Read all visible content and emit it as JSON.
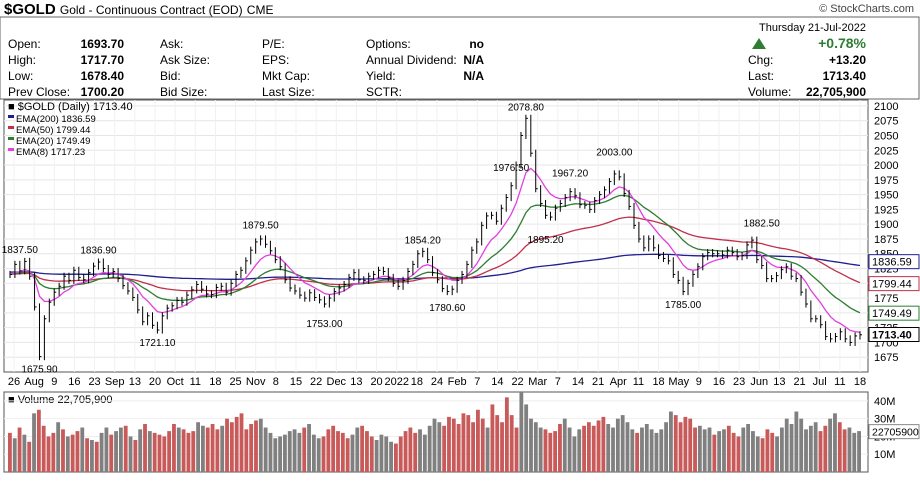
{
  "header": {
    "symbol": "$GOLD",
    "name": "Gold - Continuous Contract (EOD)",
    "exchange": "CME",
    "copyright": "© StockCharts.com",
    "date": "Thursday  21-Jul-2022",
    "pct_change": "+0.78%"
  },
  "quote": {
    "col1": [
      {
        "label": "Open:",
        "value": "1693.70"
      },
      {
        "label": "High:",
        "value": "1717.70"
      },
      {
        "label": "Low:",
        "value": "1678.40"
      },
      {
        "label": "Prev Close:",
        "value": "1700.20"
      }
    ],
    "col2": [
      "Ask:",
      "Ask Size:",
      "Bid:",
      "Bid Size:"
    ],
    "col3": [
      "P/E:",
      "EPS:",
      "Mkt Cap:",
      "Last Size:"
    ],
    "col4": [
      {
        "label": "Options:",
        "value": "no"
      },
      {
        "label": "Annual Dividend:",
        "value": "N/A"
      },
      {
        "label": "Yield:",
        "value": "N/A"
      },
      {
        "label": "SCTR:",
        "value": ""
      }
    ],
    "right": [
      {
        "label": "Chg:",
        "value": "+13.20"
      },
      {
        "label": "Last:",
        "value": "1713.40"
      },
      {
        "label": "Volume:",
        "value": "22,705,900"
      }
    ]
  },
  "colors": {
    "price": "#000000",
    "ema200": "#1f1f8f",
    "ema50": "#c0304a",
    "ema20": "#2e7d32",
    "ema8": "#e040e0",
    "up": "#2e7d32",
    "vol_up": "#c85a5a",
    "vol_down": "#808080"
  },
  "chart_data": [
    {
      "type": "line",
      "title": "$GOLD (Daily) 1713.40",
      "legend": [
        {
          "name": "EMA(200) 1836.59",
          "color": "#1f1f8f"
        },
        {
          "name": "EMA(50) 1799.44",
          "color": "#c0304a"
        },
        {
          "name": "EMA(20) 1749.49",
          "color": "#2e7d32"
        },
        {
          "name": "EMA(8) 1717.23",
          "color": "#e040e0"
        }
      ],
      "ylim": [
        1650,
        2110
      ],
      "yticks": [
        1675,
        1700,
        1725,
        1750,
        1775,
        1800,
        1825,
        1850,
        1875,
        1900,
        1925,
        1950,
        1975,
        2000,
        2025,
        2050,
        2075,
        2100
      ],
      "x_tick_labels": [
        "26",
        "Aug",
        "9",
        "16",
        "23",
        "Sep",
        "13",
        "20",
        "Oct",
        "11",
        "18",
        "25",
        "Nov",
        "8",
        "15",
        "22",
        "Dec",
        "13",
        "20",
        "2022",
        "18",
        "24",
        "Feb",
        "7",
        "14",
        "22",
        "Mar",
        "7",
        "14",
        "21",
        "Apr",
        "11",
        "18",
        "May",
        "9",
        "16",
        "23",
        "Jun",
        "13",
        "21",
        "Jul",
        "11",
        "18"
      ],
      "series": [
        {
          "name": "Price",
          "values": [
            1815,
            1832,
            1821,
            1837,
            1812,
            1760,
            1676,
            1740,
            1768,
            1785,
            1795,
            1812,
            1805,
            1822,
            1810,
            1806,
            1818,
            1829,
            1836,
            1825,
            1815,
            1820,
            1808,
            1796,
            1787,
            1776,
            1755,
            1735,
            1745,
            1729,
            1721,
            1745,
            1758,
            1762,
            1771,
            1768,
            1780,
            1789,
            1798,
            1790,
            1782,
            1781,
            1793,
            1795,
            1785,
            1800,
            1815,
            1822,
            1838,
            1856,
            1870,
            1875,
            1866,
            1855,
            1840,
            1828,
            1806,
            1792,
            1787,
            1780,
            1775,
            1784,
            1776,
            1772,
            1765,
            1775,
            1786,
            1792,
            1798,
            1810,
            1818,
            1806,
            1805,
            1812,
            1815,
            1822,
            1820,
            1810,
            1800,
            1795,
            1805,
            1820,
            1832,
            1850,
            1854,
            1840,
            1818,
            1806,
            1791,
            1786,
            1790,
            1805,
            1815,
            1832,
            1856,
            1870,
            1898,
            1914,
            1915,
            1905,
            1927,
            1945,
            1965,
            2000,
            2050,
            2079,
            2020,
            1960,
            1935,
            1915,
            1912,
            1927,
            1935,
            1945,
            1955,
            1948,
            1933,
            1932,
            1925,
            1940,
            1950,
            1958,
            1972,
            1985,
            1980,
            1952,
            1930,
            1898,
            1875,
            1860,
            1875,
            1860,
            1847,
            1842,
            1838,
            1815,
            1805,
            1786,
            1800,
            1815,
            1828,
            1845,
            1852,
            1850,
            1850,
            1848,
            1856,
            1852,
            1845,
            1847,
            1865,
            1873,
            1840,
            1830,
            1808,
            1808,
            1813,
            1823,
            1828,
            1812,
            1808,
            1785,
            1765,
            1740,
            1740,
            1730,
            1710,
            1706,
            1710,
            1718,
            1706,
            1700,
            1711,
            1713
          ]
        },
        {
          "name": "EMA(200)",
          "values": [
            1819,
            1836.59
          ]
        },
        {
          "name": "EMA(50)",
          "values": [
            1799.44
          ]
        },
        {
          "name": "EMA(20)",
          "values": [
            1749.49
          ]
        },
        {
          "name": "EMA(8)",
          "values": [
            1717.23
          ]
        }
      ],
      "annotations": [
        {
          "label": "1837.50",
          "x": 2,
          "y": 1837.5
        },
        {
          "label": "1675.90",
          "x": 6,
          "y": 1675.9
        },
        {
          "label": "1836.90",
          "x": 18,
          "y": 1836.9
        },
        {
          "label": "1721.10",
          "x": 30,
          "y": 1721.1
        },
        {
          "label": "1879.50",
          "x": 51,
          "y": 1879.5
        },
        {
          "label": "1753.00",
          "x": 64,
          "y": 1753.0
        },
        {
          "label": "1854.20",
          "x": 84,
          "y": 1854.2
        },
        {
          "label": "1780.60",
          "x": 89,
          "y": 1780.6
        },
        {
          "label": "1976.50",
          "x": 102,
          "y": 1976.5
        },
        {
          "label": "2078.80",
          "x": 105,
          "y": 2078.8
        },
        {
          "label": "1895.20",
          "x": 109,
          "y": 1895.2
        },
        {
          "label": "1967.20",
          "x": 114,
          "y": 1967.2
        },
        {
          "label": "2003.00",
          "x": 123,
          "y": 2003.0
        },
        {
          "label": "1785.00",
          "x": 137,
          "y": 1785.0
        },
        {
          "label": "1882.50",
          "x": 153,
          "y": 1882.5
        }
      ],
      "last_labels": [
        {
          "value": "1836.59",
          "color": "#1f1f8f"
        },
        {
          "value": "1799.44",
          "color": "#c0304a"
        },
        {
          "value": "1749.49",
          "color": "#2e7d32"
        },
        {
          "value": "1713.40",
          "color": "#000000"
        }
      ]
    },
    {
      "type": "bar",
      "title": "Volume 22,705,900",
      "ylim": [
        0,
        45
      ],
      "yticks_labels": [
        "10M",
        "20M",
        "30M",
        "40M"
      ],
      "last_label": "22705900",
      "values": [
        22,
        19,
        25,
        21,
        17,
        33,
        35,
        26,
        20,
        22,
        28,
        24,
        20,
        21,
        23,
        25,
        19,
        18,
        17,
        22,
        25,
        21,
        23,
        25,
        26,
        20,
        18,
        24,
        27,
        23,
        22,
        21,
        20,
        23,
        27,
        25,
        24,
        22,
        23,
        28,
        26,
        25,
        27,
        24,
        26,
        30,
        28,
        31,
        33,
        24,
        27,
        29,
        30,
        25,
        22,
        19,
        20,
        21,
        23,
        24,
        22,
        25,
        27,
        21,
        19,
        20,
        24,
        26,
        23,
        22,
        19,
        21,
        25,
        26,
        23,
        20,
        18,
        21,
        20,
        17,
        16,
        20,
        23,
        25,
        22,
        24,
        21,
        26,
        30,
        28,
        26,
        31,
        30,
        27,
        33,
        32,
        28,
        35,
        30,
        25,
        38,
        32,
        28,
        42,
        32,
        25,
        45,
        38,
        30,
        28,
        25,
        24,
        22,
        23,
        27,
        30,
        25,
        20,
        24,
        26,
        28,
        26,
        29,
        31,
        27,
        25,
        30,
        32,
        28,
        24,
        22,
        25,
        27,
        24,
        22,
        24,
        28,
        34,
        32,
        28,
        31,
        30,
        25,
        26,
        24,
        25,
        21,
        23,
        24,
        26,
        22,
        20,
        25,
        27,
        23,
        20,
        19,
        24,
        22,
        20,
        25,
        30,
        27,
        34,
        30,
        24,
        26,
        28,
        23,
        26,
        30,
        33,
        28,
        24,
        25,
        22,
        23
      ],
      "up_flags": [
        1,
        0,
        1,
        0,
        1,
        0,
        1,
        1,
        1,
        1,
        0,
        1,
        0,
        1,
        1,
        0,
        1,
        0,
        1,
        0,
        0,
        1,
        0,
        0,
        1,
        0,
        1,
        0,
        1,
        0,
        1,
        1,
        1,
        1,
        1,
        0,
        1,
        1,
        1,
        0,
        0,
        1,
        1,
        1,
        0,
        1,
        1,
        1,
        1,
        1,
        1,
        1,
        0,
        0,
        0,
        0,
        0,
        0,
        0,
        0,
        0,
        1,
        0,
        0,
        0,
        1,
        1,
        1,
        1,
        1,
        1,
        0,
        0,
        1,
        1,
        1,
        0,
        0,
        0,
        0,
        1,
        1,
        1,
        1,
        1,
        0,
        0,
        0,
        0,
        0,
        1,
        1,
        1,
        1,
        1,
        1,
        1,
        1,
        1,
        0,
        1,
        1,
        1,
        1,
        1,
        1,
        0,
        0,
        0,
        0,
        0,
        1,
        1,
        1,
        1,
        0,
        0,
        0,
        0,
        1,
        1,
        1,
        1,
        1,
        0,
        0,
        0,
        0,
        0,
        0,
        1,
        0,
        0,
        0,
        0,
        0,
        0,
        0,
        1,
        1,
        1,
        1,
        1,
        0,
        0,
        0,
        1,
        0,
        0,
        1,
        1,
        1,
        0,
        0,
        0,
        0,
        1,
        1,
        1,
        0,
        0,
        0,
        0,
        0,
        0,
        0,
        0,
        0,
        1,
        1,
        0,
        0,
        1,
        1
      ]
    }
  ]
}
